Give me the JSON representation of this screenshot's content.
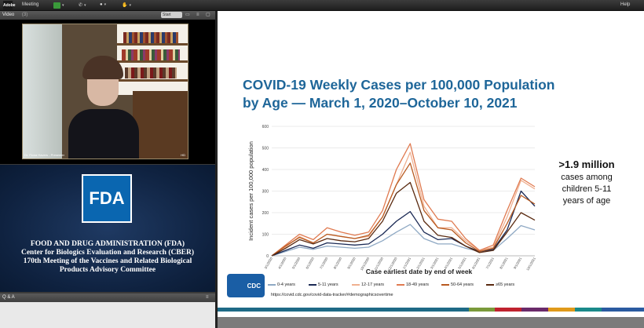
{
  "topbar": {
    "logo_text": "Adobe",
    "meeting_label": "Meeting",
    "help_label": "Help",
    "icons": [
      "speaker-icon",
      "phone-icon",
      "user-icon",
      "raise-hand-icon"
    ]
  },
  "video_pod": {
    "title": "Video",
    "count": "(3)",
    "start_label": "Start",
    "caption": "Dr. Fiona Havers - Presenter",
    "hd_label": "HD"
  },
  "fda": {
    "logo_text": "FDA",
    "lines": [
      "FOOD AND DRUG ADMINISTRATION (FDA)",
      "Center for Biologics Evaluation and Research (CBER)",
      "170th Meeting of the Vaccines and Related Biological",
      "Products Advisory Committee"
    ]
  },
  "qa_pod": {
    "title": "Q & A"
  },
  "slide": {
    "title_line1": "COVID-19 Weekly Cases per 100,000 Population",
    "title_line2": "by Age — March 1, 2020–October 10, 2021",
    "callout_number": ">1.9 million",
    "callout_line1": "cases among",
    "callout_line2": "children 5-11",
    "callout_line3": "years of age",
    "cdc_logo_text": "CDC",
    "source_url": "https://covid.cdc.gov/covid-data-tracker/#demographicsovertime",
    "stripe_colors": [
      "#1e6a86",
      "#1e6a86",
      "#1e6a86",
      "#1e6a86",
      "#1e6a86",
      "#7a9a3a",
      "#c0222e",
      "#6a2a6a",
      "#e09a1a",
      "#1a8a8a",
      "#2a5aa0"
    ]
  },
  "chart_data": {
    "type": "line",
    "ylabel": "Incident cases per 100,000 population",
    "xlabel": "Case earliest date by end of week",
    "ylim": [
      0,
      600
    ],
    "yticks": [
      0,
      100,
      200,
      300,
      400,
      500,
      600
    ],
    "x": [
      "3/1/2020",
      "4/1/2020",
      "5/1/2020",
      "6/1/2020",
      "7/1/2020",
      "8/1/2020",
      "9/1/2020",
      "10/1/2020",
      "11/1/2020",
      "12/1/2020",
      "1/1/2021",
      "2/1/2021",
      "3/1/2021",
      "4/1/2021",
      "5/1/2021",
      "6/1/2021",
      "7/1/2021",
      "8/1/2021",
      "9/1/2021",
      "10/1/2021"
    ],
    "grid": true,
    "series": [
      {
        "name": "0-4 years",
        "color": "#8fa9c4",
        "values": [
          0,
          20,
          40,
          30,
          45,
          40,
          35,
          40,
          70,
          110,
          145,
          80,
          55,
          55,
          35,
          20,
          25,
          80,
          140,
          120
        ]
      },
      {
        "name": "5-11 years",
        "color": "#1b2a55",
        "values": [
          0,
          25,
          50,
          35,
          60,
          55,
          50,
          55,
          100,
          160,
          205,
          110,
          75,
          80,
          45,
          20,
          30,
          120,
          300,
          230
        ]
      },
      {
        "name": "12-17 years",
        "color": "#f0b090",
        "values": [
          0,
          40,
          90,
          60,
          100,
          90,
          80,
          90,
          180,
          330,
          480,
          230,
          130,
          130,
          70,
          25,
          40,
          180,
          350,
          310
        ]
      },
      {
        "name": "18-49 years",
        "color": "#e07a50",
        "values": [
          0,
          50,
          100,
          75,
          130,
          110,
          95,
          110,
          210,
          400,
          520,
          260,
          170,
          160,
          80,
          25,
          50,
          210,
          360,
          320
        ]
      },
      {
        "name": "50-64 years",
        "color": "#b85a20",
        "values": [
          0,
          45,
          85,
          60,
          100,
          90,
          80,
          95,
          180,
          330,
          430,
          210,
          130,
          120,
          60,
          20,
          35,
          150,
          280,
          240
        ]
      },
      {
        "name": "≥65 years",
        "color": "#5a2a10",
        "values": [
          0,
          35,
          75,
          55,
          80,
          70,
          65,
          80,
          160,
          290,
          340,
          160,
          95,
          85,
          45,
          15,
          25,
          110,
          200,
          165
        ]
      }
    ]
  }
}
